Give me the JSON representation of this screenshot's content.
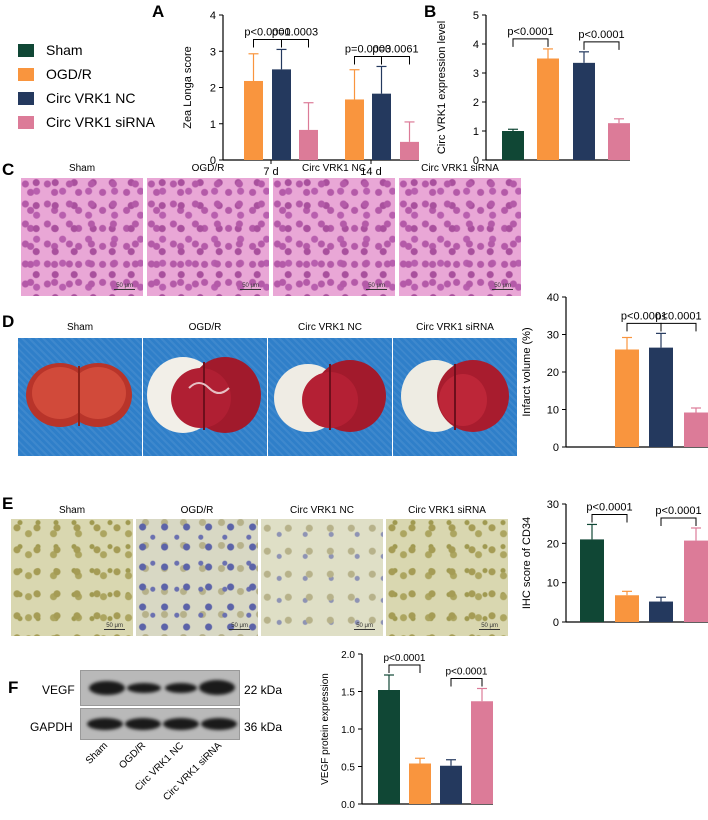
{
  "panels": {
    "A": "A",
    "B": "B",
    "C": "C",
    "D": "D",
    "E": "E",
    "F": "F"
  },
  "colors": {
    "Sham": "#104735",
    "OGD/R": "#f9953e",
    "Circ VRK1 NC": "#24395e",
    "Circ VRK1 siRNA": "#dc7b98"
  },
  "legend": [
    "Sham",
    "OGD/R",
    "Circ VRK1 NC",
    "Circ VRK1 siRNA"
  ],
  "groups": [
    "Sham",
    "OGD/R",
    "Circ VRK1 NC",
    "Circ VRK1 siRNA"
  ],
  "image_scale": "50 μm",
  "western": {
    "rows": [
      {
        "label": "VEGF",
        "kda": "22 kDa"
      },
      {
        "label": "GAPDH",
        "kda": "36 kDa"
      }
    ],
    "lanes": [
      "Sham",
      "OGD/R",
      "Circ VRK1 NC",
      "Circ VRK1 siRNA"
    ]
  },
  "chart_data": [
    {
      "id": "A",
      "type": "bar",
      "ylabel": "Zea Longa score",
      "ylim": [
        0,
        4
      ],
      "yticks": [
        0,
        1,
        2,
        3,
        4
      ],
      "categories": [
        "7 d",
        "14 d"
      ],
      "series": [
        {
          "name": "OGD/R",
          "values": [
            2.18,
            1.67
          ],
          "errors": [
            0.75,
            0.82
          ]
        },
        {
          "name": "Circ VRK1 NC",
          "values": [
            2.5,
            1.83
          ],
          "errors": [
            0.55,
            0.75
          ]
        },
        {
          "name": "Circ VRK1 siRNA",
          "values": [
            0.83,
            0.5
          ],
          "errors": [
            0.75,
            0.55
          ]
        }
      ],
      "annotations": [
        {
          "text": "p<0.0001",
          "from": [
            0,
            0
          ],
          "to": [
            0,
            1
          ]
        },
        {
          "text": "p=0.0003",
          "from": [
            0,
            1
          ],
          "to": [
            0,
            2
          ]
        },
        {
          "text": "p=0.0003",
          "from": [
            1,
            0
          ],
          "to": [
            1,
            1
          ]
        },
        {
          "text": "p=0.0061",
          "from": [
            1,
            1
          ],
          "to": [
            1,
            2
          ]
        }
      ]
    },
    {
      "id": "B",
      "type": "bar",
      "ylabel": "Circ VRK1 expression level",
      "ylim": [
        0,
        5
      ],
      "yticks": [
        0,
        1,
        2,
        3,
        4,
        5
      ],
      "categories": [
        "Sham",
        "OGD/R",
        "Circ VRK1 NC",
        "Circ VRK1 siRNA"
      ],
      "values": [
        1.0,
        3.5,
        3.35,
        1.27
      ],
      "errors": [
        0.06,
        0.33,
        0.38,
        0.15
      ],
      "annotations": [
        {
          "text": "p<0.0001",
          "from": 0,
          "to": 1
        },
        {
          "text": "p<0.0001",
          "from": 2,
          "to": 3
        }
      ]
    },
    {
      "id": "D",
      "type": "bar",
      "ylabel": "Infarct volume (%)",
      "ylim": [
        0,
        40
      ],
      "yticks": [
        0,
        10,
        20,
        30,
        40
      ],
      "categories": [
        "Sham",
        "OGD/R",
        "Circ VRK1 NC",
        "Circ VRK1 siRNA"
      ],
      "values": [
        0,
        26,
        26.5,
        9.2
      ],
      "errors": [
        0,
        3.2,
        3.8,
        1.2
      ],
      "annotations": [
        {
          "text": "p<0.0001",
          "from": 1,
          "to": 2
        },
        {
          "text": "p<0.0001",
          "from": 2,
          "to": 3
        }
      ]
    },
    {
      "id": "E",
      "type": "bar",
      "ylabel": "IHC score of CD34",
      "ylim": [
        0,
        30
      ],
      "yticks": [
        0,
        10,
        20,
        30
      ],
      "categories": [
        "Sham",
        "OGD/R",
        "Circ VRK1 NC",
        "Circ VRK1 siRNA"
      ],
      "values": [
        21,
        6.8,
        5.2,
        20.7
      ],
      "errors": [
        3.8,
        1.0,
        1.1,
        3.2
      ],
      "annotations": [
        {
          "text": "p<0.0001",
          "from": 0,
          "to": 1
        },
        {
          "text": "p<0.0001",
          "from": 2,
          "to": 3
        }
      ]
    },
    {
      "id": "F",
      "type": "bar",
      "ylabel": "VEGF protein expression",
      "ylim": [
        0,
        2.0
      ],
      "yticks": [
        0,
        0.5,
        1.0,
        1.5,
        2.0
      ],
      "ytick_labels": [
        "0.0",
        "0.5",
        "1.0",
        "1.5",
        "2.0"
      ],
      "categories": [
        "Sham",
        "OGD/R",
        "Circ VRK1 NC",
        "Circ VRK1 siRNA"
      ],
      "values": [
        1.52,
        0.54,
        0.51,
        1.37
      ],
      "errors": [
        0.2,
        0.07,
        0.08,
        0.17
      ],
      "annotations": [
        {
          "text": "p<0.0001",
          "from": 0,
          "to": 1
        },
        {
          "text": "p<0.0001",
          "from": 2,
          "to": 3
        }
      ]
    }
  ]
}
